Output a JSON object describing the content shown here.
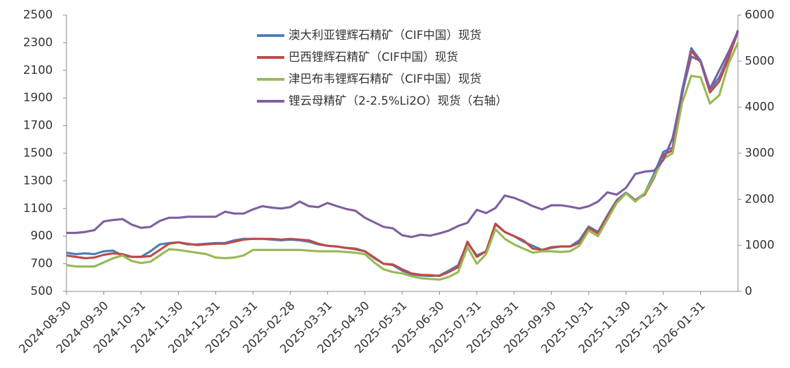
{
  "chart_data": {
    "type": "line",
    "categories": [
      "2024-08-30",
      null,
      null,
      null,
      "2024-09-30",
      null,
      null,
      null,
      "2024-10-31",
      null,
      null,
      null,
      "2024-11-30",
      null,
      null,
      null,
      "2024-12-31",
      null,
      null,
      null,
      "2025-01-31",
      null,
      null,
      null,
      "2025-02-28",
      null,
      null,
      null,
      "2025-03-31",
      null,
      null,
      null,
      "2025-04-30",
      null,
      null,
      null,
      "2025-05-31",
      null,
      null,
      null,
      "2025-06-30",
      null,
      null,
      null,
      "2025-07-31",
      null,
      null,
      null,
      "2025-08-31",
      null,
      null,
      null,
      "2025-09-30",
      null,
      null,
      null,
      "2025-10-31",
      null,
      null,
      null,
      "2025-11-30",
      null,
      null,
      null,
      "2025-12-31",
      null,
      null,
      null,
      "2026-01-31",
      null,
      null,
      null,
      null
    ],
    "series": [
      {
        "name": "澳大利亚锂辉石精矿（CIF中国）现货",
        "color": "#4a7ebb",
        "values": [
          780,
          770,
          775,
          770,
          790,
          795,
          760,
          750,
          750,
          790,
          840,
          850,
          855,
          840,
          840,
          845,
          850,
          850,
          870,
          880,
          880,
          880,
          875,
          870,
          875,
          870,
          860,
          840,
          830,
          825,
          815,
          810,
          790,
          740,
          700,
          690,
          650,
          625,
          615,
          612,
          615,
          650,
          690,
          850,
          760,
          790,
          985,
          930,
          900,
          860,
          830,
          800,
          815,
          825,
          825,
          870,
          970,
          930,
          1050,
          1160,
          1215,
          1160,
          1210,
          1350,
          1510,
          1540,
          1950,
          2260,
          2170,
          1960,
          2050,
          2200,
          2390
        ]
      },
      {
        "name": "巴西锂辉石精矿（CIF中国）现货",
        "color": "#be4b48",
        "values": [
          760,
          750,
          740,
          745,
          765,
          775,
          770,
          750,
          750,
          755,
          800,
          845,
          855,
          845,
          835,
          840,
          845,
          845,
          860,
          875,
          880,
          880,
          880,
          875,
          880,
          875,
          870,
          845,
          830,
          825,
          815,
          805,
          790,
          745,
          700,
          695,
          660,
          630,
          620,
          618,
          612,
          640,
          675,
          860,
          750,
          790,
          990,
          930,
          900,
          870,
          810,
          800,
          820,
          825,
          825,
          850,
          960,
          920,
          1040,
          1150,
          1210,
          1160,
          1200,
          1320,
          1490,
          1520,
          1920,
          2240,
          2160,
          1940,
          2020,
          2190,
          2380
        ]
      },
      {
        "name": "津巴布韦锂辉石精矿（CIF中国）现货",
        "color": "#98b954",
        "values": [
          690,
          680,
          680,
          680,
          710,
          740,
          760,
          720,
          705,
          715,
          760,
          805,
          800,
          790,
          780,
          770,
          745,
          740,
          745,
          760,
          800,
          800,
          800,
          800,
          800,
          800,
          795,
          790,
          790,
          790,
          785,
          780,
          770,
          710,
          660,
          640,
          630,
          610,
          595,
          590,
          585,
          605,
          640,
          820,
          700,
          770,
          950,
          880,
          840,
          810,
          780,
          790,
          790,
          785,
          790,
          830,
          940,
          900,
          1020,
          1140,
          1210,
          1150,
          1210,
          1330,
          1460,
          1500,
          1860,
          2060,
          2050,
          1860,
          1920,
          2150,
          2300
        ]
      },
      {
        "name": "锂云母精矿（2-2.5%Li2O）现货（右轴）",
        "color": "#7d60a0",
        "axis": "y2",
        "values": [
          1270,
          1270,
          1290,
          1330,
          1520,
          1550,
          1570,
          1450,
          1380,
          1400,
          1530,
          1600,
          1600,
          1620,
          1620,
          1620,
          1620,
          1730,
          1690,
          1690,
          1780,
          1850,
          1820,
          1800,
          1830,
          1950,
          1850,
          1830,
          1920,
          1850,
          1790,
          1750,
          1600,
          1500,
          1400,
          1370,
          1220,
          1180,
          1230,
          1210,
          1260,
          1320,
          1420,
          1490,
          1770,
          1700,
          1810,
          2080,
          2030,
          1950,
          1850,
          1780,
          1870,
          1870,
          1840,
          1800,
          1850,
          1950,
          2150,
          2100,
          2250,
          2550,
          2600,
          2620,
          2850,
          3330,
          4300,
          5100,
          5000,
          4400,
          4800,
          5200,
          5650
        ]
      }
    ],
    "ylim": [
      500,
      2500
    ],
    "yticks": [
      500,
      700,
      900,
      1100,
      1300,
      1500,
      1700,
      1900,
      2100,
      2300,
      2500
    ],
    "y2lim": [
      0,
      6000
    ],
    "y2ticks": [
      0,
      1000,
      2000,
      3000,
      4000,
      5000,
      6000
    ]
  }
}
